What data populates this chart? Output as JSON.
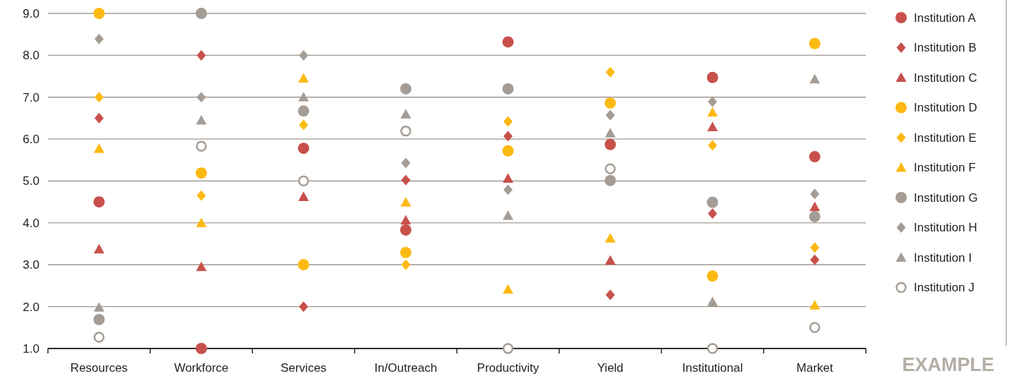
{
  "chart_data": {
    "type": "scatter",
    "categories": [
      "Resources",
      "Workforce",
      "Services",
      "In/Outreach",
      "Productivity",
      "Yield",
      "Institutional",
      "Market"
    ],
    "ylim": [
      1,
      9
    ],
    "yticks": [
      {
        "value": 1,
        "label": "1.0"
      },
      {
        "value": 2,
        "label": "2.0"
      },
      {
        "value": 3,
        "label": "3.0"
      },
      {
        "value": 4,
        "label": "4.0"
      },
      {
        "value": 5,
        "label": "5.0"
      },
      {
        "value": 6,
        "label": "6.0"
      },
      {
        "value": 7,
        "label": "7.0"
      },
      {
        "value": 8,
        "label": "8.0"
      },
      {
        "value": 9,
        "label": "9.0"
      }
    ],
    "grid": "y",
    "legend": "right",
    "annotations": [
      "EXAMPLE"
    ],
    "series": [
      {
        "name": "Institution A",
        "color": "#c8504b",
        "marker": "circle",
        "values": [
          4.5,
          1.0,
          5.78,
          3.83,
          8.32,
          5.87,
          7.47,
          5.58
        ]
      },
      {
        "name": "Institution B",
        "color": "#c8504b",
        "marker": "diamond",
        "values": [
          6.5,
          8.0,
          2.0,
          5.02,
          6.07,
          2.28,
          4.22,
          3.12
        ]
      },
      {
        "name": "Institution C",
        "color": "#c8504b",
        "marker": "triangle",
        "values": [
          3.37,
          2.95,
          4.62,
          4.06,
          5.06,
          3.1,
          6.29,
          4.38
        ]
      },
      {
        "name": "Institution D",
        "color": "#fdb913",
        "marker": "circle",
        "values": [
          9.0,
          5.19,
          3.0,
          3.29,
          5.72,
          6.86,
          2.73,
          8.28
        ]
      },
      {
        "name": "Institution E",
        "color": "#fdb913",
        "marker": "diamond",
        "values": [
          7.0,
          4.65,
          6.34,
          3.0,
          6.42,
          7.6,
          5.85,
          3.41
        ]
      },
      {
        "name": "Institution F",
        "color": "#fdb913",
        "marker": "triangle",
        "values": [
          5.77,
          4.0,
          7.45,
          4.49,
          2.41,
          3.63,
          6.64,
          2.03
        ]
      },
      {
        "name": "Institution G",
        "color": "#a59d95",
        "marker": "circle",
        "values": [
          1.69,
          9.0,
          6.67,
          7.2,
          7.2,
          5.01,
          4.49,
          4.15
        ]
      },
      {
        "name": "Institution H",
        "color": "#a59d95",
        "marker": "diamond",
        "values": [
          8.39,
          7.0,
          8.0,
          5.43,
          4.79,
          6.57,
          6.89,
          4.69
        ]
      },
      {
        "name": "Institution I",
        "color": "#a59d95",
        "marker": "triangle",
        "values": [
          1.98,
          6.45,
          7.0,
          6.59,
          4.17,
          6.14,
          2.11,
          7.43
        ]
      },
      {
        "name": "Institution J",
        "color": "#a59d95",
        "marker": "circle-open",
        "values": [
          1.27,
          5.83,
          5.0,
          6.19,
          1.0,
          5.29,
          1.0,
          1.5
        ]
      }
    ]
  }
}
